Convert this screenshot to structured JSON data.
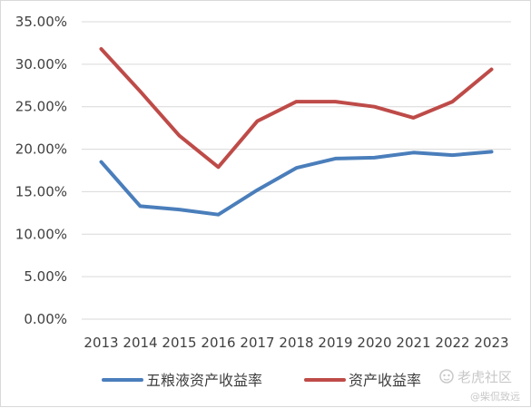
{
  "chart_data": {
    "type": "line",
    "title": "",
    "xlabel": "",
    "ylabel": "",
    "ylim": [
      0,
      35
    ],
    "y_ticks": [
      0,
      5,
      10,
      15,
      20,
      25,
      30,
      35
    ],
    "y_tick_labels": [
      "0.00%",
      "5.00%",
      "10.00%",
      "15.00%",
      "20.00%",
      "25.00%",
      "30.00%",
      "35.00%"
    ],
    "grid": true,
    "legend_position": "bottom",
    "categories": [
      "2013",
      "2014",
      "2015",
      "2016",
      "2017",
      "2018",
      "2019",
      "2020",
      "2021",
      "2022",
      "2023"
    ],
    "series": [
      {
        "name": "五粮液资产收益率",
        "color": "#4a7ebb",
        "values": [
          18.5,
          13.3,
          12.9,
          12.3,
          15.2,
          17.8,
          18.9,
          19.0,
          19.6,
          19.3,
          19.7
        ]
      },
      {
        "name": "资产收益率",
        "color": "#be4b48",
        "values": [
          31.8,
          26.8,
          21.6,
          17.9,
          23.3,
          25.6,
          25.6,
          25.0,
          23.7,
          25.6,
          29.4
        ]
      }
    ]
  },
  "watermark": {
    "brand": "老虎社区",
    "handle": "@柴侃致远",
    "icon": "tiger-logo-icon"
  }
}
